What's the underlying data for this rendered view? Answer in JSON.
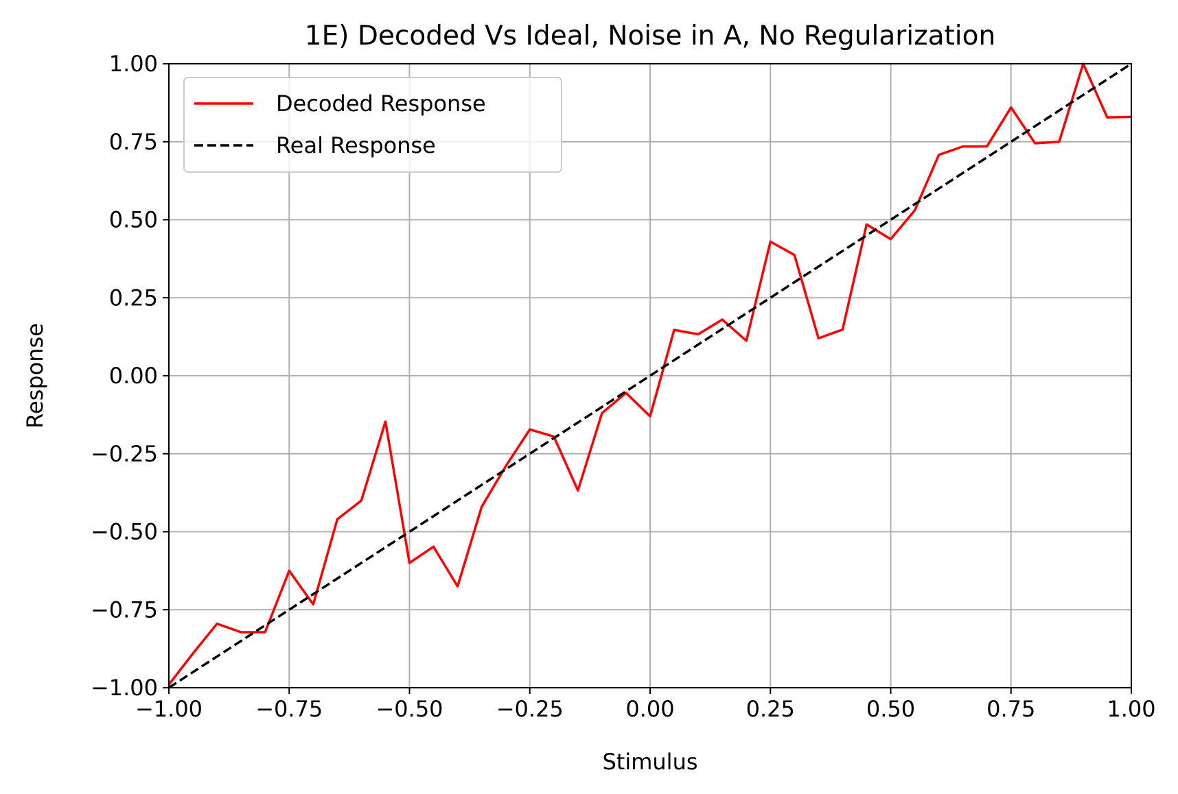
{
  "chart_data": {
    "type": "line",
    "title": "1E) Decoded Vs Ideal, Noise in A, No Regularization",
    "xlabel": "Stimulus",
    "ylabel": "Response",
    "xlim": [
      -1.0,
      1.0
    ],
    "ylim": [
      -1.0,
      1.0
    ],
    "grid": true,
    "legend_position": "top-left",
    "x_ticks": [
      -1.0,
      -0.75,
      -0.5,
      -0.25,
      0.0,
      0.25,
      0.5,
      0.75,
      1.0
    ],
    "x_tick_labels": [
      "−1.00",
      "−0.75",
      "−0.50",
      "−0.25",
      "0.00",
      "0.25",
      "0.50",
      "0.75",
      "1.00"
    ],
    "y_ticks": [
      -1.0,
      -0.75,
      -0.5,
      -0.25,
      0.0,
      0.25,
      0.5,
      0.75,
      1.0
    ],
    "y_tick_labels": [
      "−1.00",
      "−0.75",
      "−0.50",
      "−0.25",
      "0.00",
      "0.25",
      "0.50",
      "0.75",
      "1.00"
    ],
    "series": [
      {
        "name": "Decoded Response",
        "color": "#ff0000",
        "style": "solid",
        "x": [
          -1.0,
          -0.95,
          -0.9,
          -0.85,
          -0.8,
          -0.75,
          -0.7,
          -0.65,
          -0.6,
          -0.55,
          -0.5,
          -0.45,
          -0.4,
          -0.35,
          -0.3,
          -0.25,
          -0.2,
          -0.15,
          -0.1,
          -0.05,
          0.0,
          0.05,
          0.1,
          0.15,
          0.2,
          0.25,
          0.3,
          0.35,
          0.4,
          0.45,
          0.5,
          0.55,
          0.6,
          0.65,
          0.7,
          0.75,
          0.8,
          0.85,
          0.9,
          0.95,
          1.0
        ],
        "y": [
          -0.99,
          -0.89,
          -0.795,
          -0.822,
          -0.822,
          -0.625,
          -0.733,
          -0.46,
          -0.4,
          -0.147,
          -0.6,
          -0.548,
          -0.675,
          -0.42,
          -0.29,
          -0.172,
          -0.195,
          -0.368,
          -0.12,
          -0.055,
          -0.13,
          0.147,
          0.133,
          0.18,
          0.112,
          0.43,
          0.387,
          0.12,
          0.148,
          0.485,
          0.438,
          0.53,
          0.708,
          0.735,
          0.735,
          0.86,
          0.745,
          0.75,
          1.0,
          0.828,
          0.83
        ]
      },
      {
        "name": "Real Response",
        "color": "#000000",
        "style": "dashed",
        "x": [
          -1.0,
          1.0
        ],
        "y": [
          -1.0,
          1.0
        ]
      }
    ]
  }
}
